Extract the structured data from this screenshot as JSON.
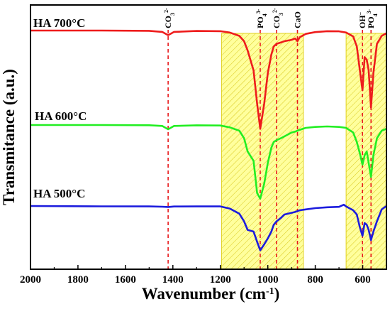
{
  "chart_data": {
    "type": "line",
    "xlabel": "Wavenumber (cm",
    "xlabel_sup": "-1",
    "xlabel_tail": ")",
    "ylabel": "Transmitance (a.u.)",
    "xlim": [
      2000,
      500
    ],
    "x_reversed": true,
    "y_ticks_shown": false,
    "x_ticks": [
      2000,
      1800,
      1600,
      1400,
      1200,
      1000,
      800,
      600
    ],
    "x_tick_labels": [
      "2000",
      "1800",
      "1600",
      "1400",
      "1200",
      "1000",
      "800",
      "600"
    ],
    "bands": [
      {
        "from": 1195,
        "to": 850,
        "color": "#ffff4d"
      },
      {
        "from": 670,
        "to": 500,
        "color": "#ffff4d"
      }
    ],
    "reference_lines": [
      {
        "x": 1420,
        "color": "#e8191c"
      },
      {
        "x": 1032,
        "color": "#e8191c"
      },
      {
        "x": 963,
        "color": "#e8191c"
      },
      {
        "x": 875,
        "color": "#e8191c"
      },
      {
        "x": 601,
        "color": "#e8191c"
      },
      {
        "x": 565,
        "color": "#e8191c"
      }
    ],
    "annotations": [
      {
        "x": 1420,
        "base": "CO",
        "sub": "3",
        "sup": "2-"
      },
      {
        "x": 1032,
        "base": "PO",
        "sub": "4",
        "sup": "3-"
      },
      {
        "x": 963,
        "base": "CO",
        "sub": "3",
        "sup": "2-"
      },
      {
        "x": 875,
        "base": "CaO",
        "sub": "",
        "sup": ""
      },
      {
        "x": 601,
        "base": "OH",
        "sub": "",
        "sup": "−"
      },
      {
        "x": 565,
        "base": "PO",
        "sub": "4",
        "sup": "3-"
      }
    ],
    "series": [
      {
        "name": "HA 700°C",
        "color": "#ee1c1c",
        "x": [
          2000,
          1700,
          1500,
          1445,
          1420,
          1395,
          1300,
          1200,
          1160,
          1120,
          1100,
          1085,
          1060,
          1045,
          1032,
          1015,
          1000,
          985,
          975,
          963,
          945,
          930,
          900,
          885,
          875,
          865,
          840,
          800,
          750,
          700,
          670,
          640,
          625,
          612,
          601,
          592,
          583,
          575,
          565,
          555,
          540,
          520,
          500
        ],
        "y": [
          0.0,
          0.0,
          0.2,
          1.0,
          3.5,
          1.0,
          0.3,
          0.5,
          1.5,
          4.0,
          8.0,
          15.0,
          30.0,
          55.0,
          74.0,
          55.0,
          32.0,
          18.0,
          12.0,
          10.0,
          9.0,
          8.0,
          7.0,
          6.0,
          8.0,
          5.0,
          2.5,
          1.2,
          0.5,
          0.6,
          1.5,
          4.5,
          12.0,
          30.0,
          45.0,
          20.0,
          22.0,
          30.0,
          58.0,
          32.0,
          10.0,
          4.0,
          2.0
        ]
      },
      {
        "name": "HA 600°C",
        "color": "#22ee22",
        "x": [
          2000,
          1700,
          1500,
          1445,
          1420,
          1395,
          1300,
          1200,
          1160,
          1120,
          1100,
          1085,
          1060,
          1045,
          1032,
          1015,
          1000,
          985,
          975,
          963,
          945,
          930,
          900,
          885,
          875,
          865,
          840,
          800,
          750,
          700,
          670,
          640,
          625,
          612,
          601,
          592,
          583,
          575,
          565,
          555,
          540,
          520,
          500
        ],
        "y": [
          0.0,
          0.0,
          0.2,
          1.0,
          4.5,
          1.0,
          0.3,
          0.5,
          2.5,
          6.0,
          14.0,
          28.0,
          38.0,
          72.0,
          78.0,
          62.0,
          40.0,
          24.0,
          18.0,
          16.0,
          14.0,
          12.0,
          8.0,
          7.0,
          6.0,
          5.0,
          3.0,
          2.0,
          1.5,
          2.0,
          3.0,
          8.0,
          18.0,
          30.0,
          42.0,
          32.0,
          28.0,
          40.0,
          55.0,
          32.0,
          14.0,
          6.0,
          4.0
        ]
      },
      {
        "name": "HA 500°C",
        "color": "#1c1cdd",
        "x": [
          2000,
          1700,
          1500,
          1445,
          1420,
          1395,
          1300,
          1200,
          1160,
          1120,
          1100,
          1085,
          1060,
          1045,
          1032,
          1015,
          1000,
          985,
          975,
          963,
          945,
          930,
          900,
          885,
          875,
          865,
          840,
          800,
          750,
          700,
          680,
          670,
          640,
          625,
          612,
          601,
          592,
          583,
          575,
          565,
          555,
          540,
          520,
          500
        ],
        "y": [
          0.0,
          0.4,
          0.5,
          0.8,
          1.2,
          0.6,
          0.5,
          0.5,
          3.0,
          9.0,
          18.0,
          28.0,
          30.0,
          42.0,
          52.0,
          45.0,
          38.0,
          30.0,
          22.0,
          18.0,
          14.0,
          10.0,
          8.0,
          7.0,
          6.0,
          5.0,
          4.0,
          2.5,
          1.5,
          1.0,
          -1.5,
          0.5,
          5.0,
          10.0,
          25.0,
          35.0,
          20.0,
          22.0,
          28.0,
          40.0,
          30.0,
          18.0,
          4.0,
          0.0
        ]
      }
    ]
  }
}
